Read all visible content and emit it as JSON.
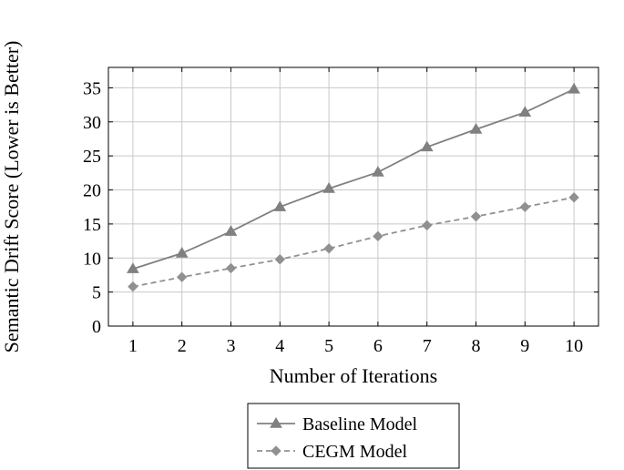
{
  "chart_data": {
    "type": "line",
    "title": "",
    "xlabel": "Number of Iterations",
    "ylabel": "Semantic Drift Score (Lower is Better)",
    "x": [
      1,
      2,
      3,
      4,
      5,
      6,
      7,
      8,
      9,
      10
    ],
    "xlim": [
      0.5,
      10.5
    ],
    "ylim": [
      0,
      38
    ],
    "xticks": [
      1,
      2,
      3,
      4,
      5,
      6,
      7,
      8,
      9,
      10
    ],
    "yticks": [
      0,
      5,
      10,
      15,
      20,
      25,
      30,
      35
    ],
    "grid": true,
    "legend_position": "below",
    "series": [
      {
        "name": "Baseline Model",
        "values": [
          8.4,
          10.7,
          13.9,
          17.5,
          20.2,
          22.6,
          26.3,
          28.9,
          31.4,
          34.8
        ],
        "color": "#808080",
        "line_style": "solid",
        "marker": "triangle"
      },
      {
        "name": "CEGM Model",
        "values": [
          5.8,
          7.2,
          8.5,
          9.8,
          11.4,
          13.2,
          14.8,
          16.1,
          17.5,
          18.9
        ],
        "color": "#909090",
        "line_style": "dashed",
        "marker": "diamond"
      }
    ]
  }
}
